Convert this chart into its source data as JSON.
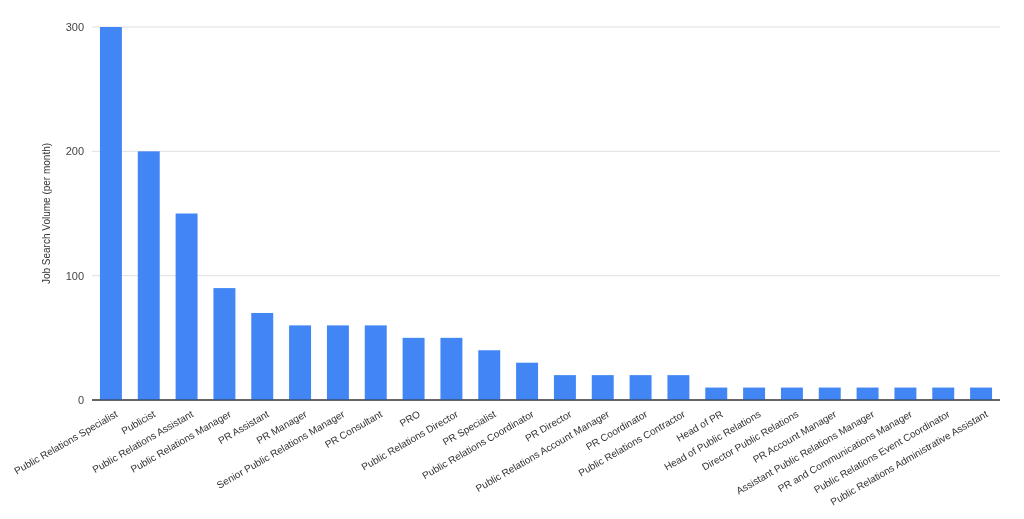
{
  "chart_data": {
    "type": "bar",
    "ylabel": "Job Search Volume (per month)",
    "categories": [
      "Public Relations Specialist",
      "Publicist",
      "Public Relations Assistant",
      "Public Relations Manager",
      "PR Assistant",
      "PR Manager",
      "Senior Public Relations Manager",
      "PR Consultant",
      "PRO",
      "Public Relations Director",
      "PR Specialist",
      "Public Relations Coordinator",
      "PR Director",
      "Public Relations Account Manager",
      "PR Coordinator",
      "Public Relations Contractor",
      "Head of PR",
      "Head of Public Relations",
      "Director Public Relations",
      "PR Account Manager",
      "Assistant Public Relations Manager",
      "PR and Communications Manager",
      "Public Relations Event Coordinator",
      "Public Relations Administrative Assistant"
    ],
    "values": [
      300,
      200,
      150,
      90,
      70,
      60,
      60,
      60,
      50,
      50,
      40,
      30,
      20,
      20,
      20,
      20,
      10,
      10,
      10,
      10,
      10,
      10,
      10,
      10
    ],
    "color": "#4285f4",
    "ylim": [
      0,
      300
    ],
    "yticks": [
      0,
      100,
      200,
      300
    ],
    "grid": "y"
  }
}
